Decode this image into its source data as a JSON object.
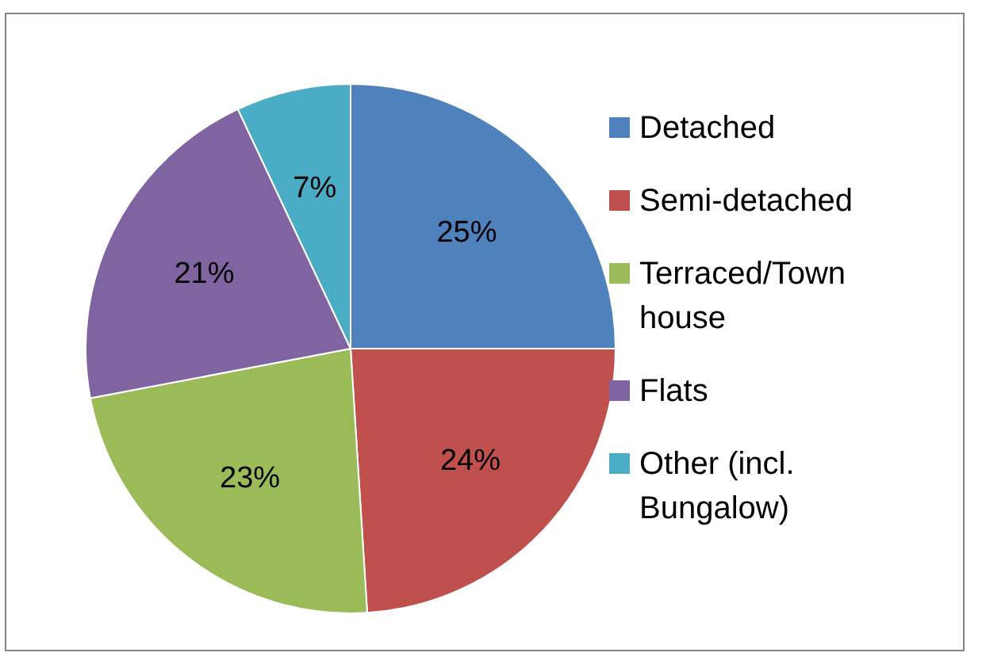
{
  "chart_data": {
    "type": "pie",
    "categories": [
      "Detached",
      "Semi-detached",
      "Terraced/Town house",
      "Flats",
      "Other (incl. Bungalow)"
    ],
    "values": [
      25,
      24,
      23,
      21,
      7
    ],
    "colors": [
      "#4f81bd",
      "#c0504d",
      "#9bbb59",
      "#8064a2",
      "#4bacc6"
    ],
    "value_labels": [
      "25%",
      "24%",
      "23%",
      "21%",
      "7%"
    ],
    "legend": "right"
  }
}
